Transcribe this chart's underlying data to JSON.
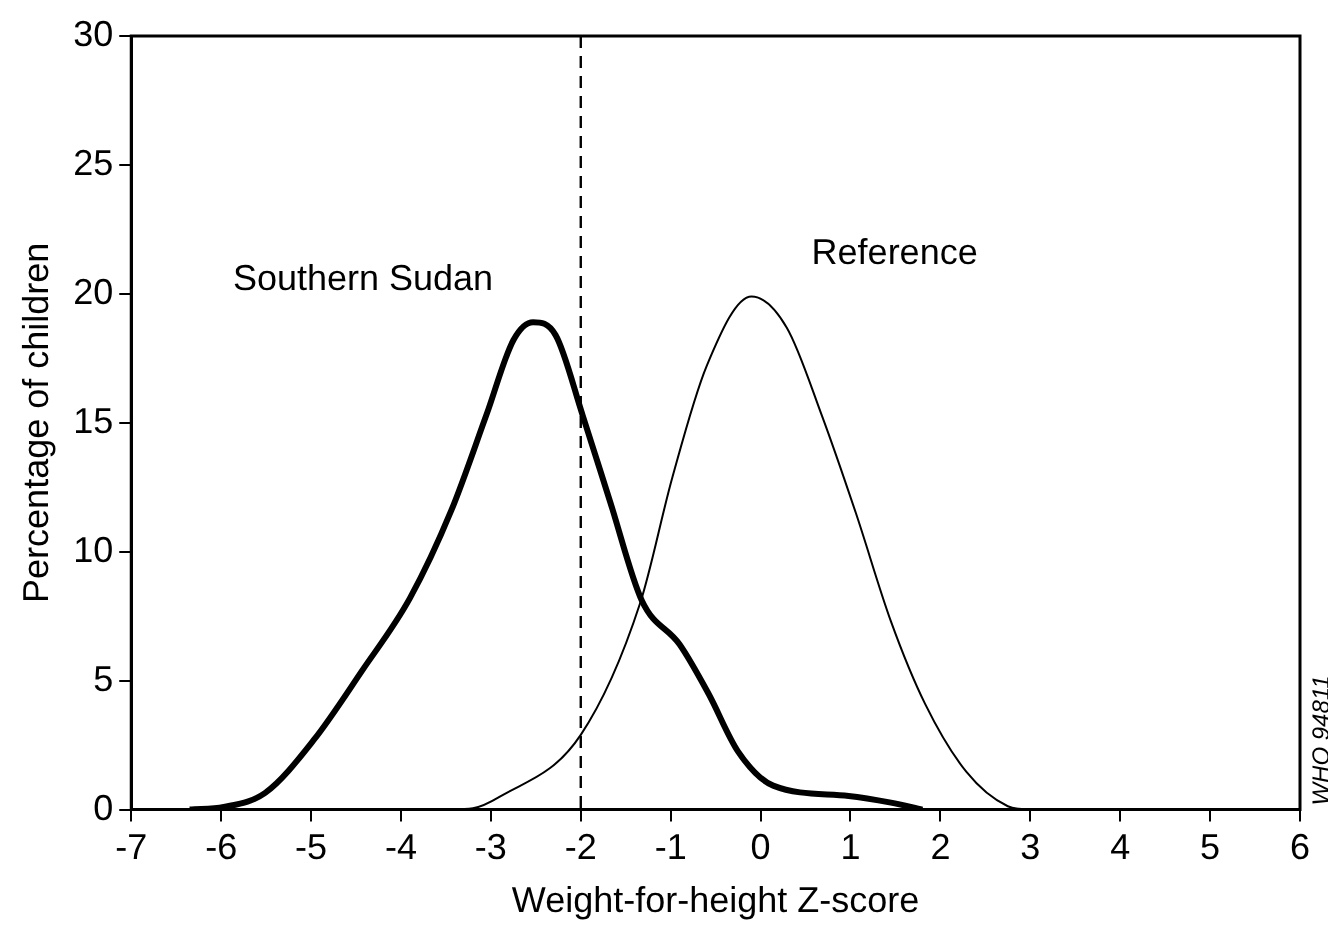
{
  "chart_data": {
    "type": "line",
    "xlabel": "Weight-for-height Z-score",
    "ylabel": "Percentage of children",
    "xlim": [
      -7,
      6
    ],
    "xticks": [
      -7,
      -6,
      -5,
      -4,
      -3,
      -2,
      -1,
      0,
      1,
      2,
      3,
      4,
      5,
      6
    ],
    "ylim": [
      0,
      30
    ],
    "yticks": [
      0,
      5,
      10,
      15,
      20,
      25,
      30
    ],
    "grid": false,
    "legend": false,
    "marker": "none",
    "series": [
      {
        "name": "Southern Sudan",
        "color": "#000000",
        "x": [
          -6.35,
          -5.97,
          -5.51,
          -4.97,
          -4.43,
          -3.9,
          -3.44,
          -3.05,
          -2.75,
          -2.53,
          -2.28,
          -1.98,
          -1.67,
          -1.32,
          -0.9,
          -0.58,
          -0.25,
          0.14,
          0.98,
          1.45,
          1.8
        ],
        "values": [
          0,
          0.1,
          0.65,
          2.7,
          5.4,
          8.2,
          11.6,
          15.3,
          18.2,
          18.9,
          18.4,
          15.3,
          11.9,
          8.1,
          6.4,
          4.5,
          2.25,
          0.93,
          0.53,
          0.27,
          0
        ]
      },
      {
        "name": "Reference",
        "color": "#000000",
        "x": [
          -3.5,
          -3.2,
          -2.9,
          -2.0,
          -1.34,
          -0.98,
          -0.6,
          -0.1,
          0.29,
          0.68,
          1.06,
          1.45,
          1.83,
          2.29,
          2.75,
          2.98
        ],
        "values": [
          0,
          0.05,
          0.5,
          2.9,
          8.0,
          12.9,
          17.2,
          19.9,
          18.7,
          15.3,
          11.5,
          7.3,
          4.1,
          1.46,
          0.13,
          0
        ]
      }
    ],
    "ref_lines": [
      {
        "axis": "x",
        "value": -2,
        "color": "#000000",
        "line_style": "dashed"
      }
    ],
    "annotations": [
      "WHO 94811"
    ]
  }
}
